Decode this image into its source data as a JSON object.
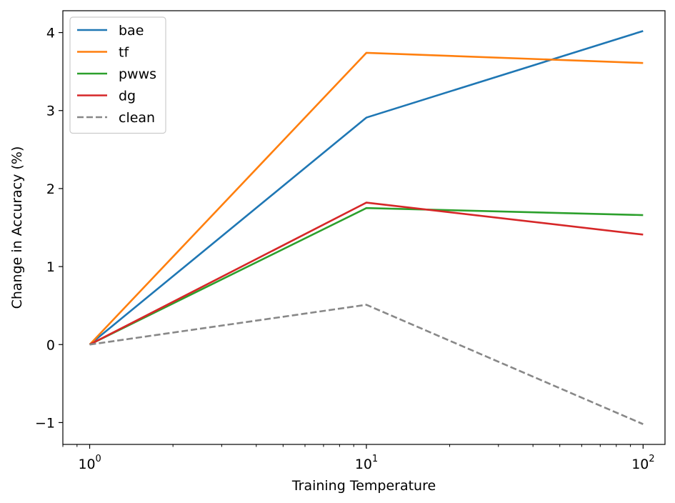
{
  "chart_data": {
    "type": "line",
    "title": "",
    "xlabel": "Training Temperature",
    "ylabel": "Change in Accuracy (%)",
    "xscale": "log",
    "x": [
      1,
      10,
      100
    ],
    "xlim": [
      0.8,
      120
    ],
    "ylim": [
      -1.28,
      4.28
    ],
    "xticks": [
      {
        "value": 1,
        "base": "10",
        "exp": "0"
      },
      {
        "value": 10,
        "base": "10",
        "exp": "1"
      },
      {
        "value": 100,
        "base": "10",
        "exp": "2"
      }
    ],
    "yticks": [
      {
        "value": -1,
        "label": "−1"
      },
      {
        "value": 0,
        "label": "0"
      },
      {
        "value": 1,
        "label": "1"
      },
      {
        "value": 2,
        "label": "2"
      },
      {
        "value": 3,
        "label": "3"
      },
      {
        "value": 4,
        "label": "4"
      }
    ],
    "series": [
      {
        "name": "bae",
        "color": "#1f77b4",
        "dash": "solid",
        "values": [
          0,
          2.91,
          4.02
        ]
      },
      {
        "name": "tf",
        "color": "#ff7f0e",
        "dash": "solid",
        "values": [
          0,
          3.74,
          3.61
        ]
      },
      {
        "name": "pwws",
        "color": "#2ca02c",
        "dash": "solid",
        "values": [
          0,
          1.75,
          1.66
        ]
      },
      {
        "name": "dg",
        "color": "#d62728",
        "dash": "solid",
        "values": [
          0,
          1.82,
          1.41
        ]
      },
      {
        "name": "clean",
        "color": "#888888",
        "dash": "dashed",
        "values": [
          0,
          0.51,
          -1.02
        ]
      }
    ],
    "legend_position": "top-left",
    "grid": false
  }
}
